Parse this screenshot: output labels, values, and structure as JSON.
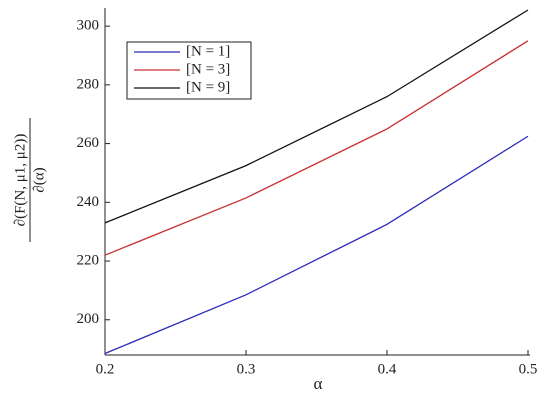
{
  "chart_data": {
    "type": "line",
    "x_label": "α",
    "y_label_numerator": "∂(F(N, μ1, μ2))",
    "y_label_denominator": "∂(α)",
    "x": [
      0.2,
      0.3,
      0.4,
      0.5
    ],
    "series": [
      {
        "name": "[N = 1]",
        "color": "#2b2bb8",
        "values": [
          188.5,
          208.5,
          232.5,
          262.5
        ]
      },
      {
        "name": "[N = 3]",
        "color": "#c83030",
        "values": [
          222,
          241.5,
          265,
          295
        ]
      },
      {
        "name": "[N = 9]",
        "color": "#111111",
        "values": [
          233,
          252.5,
          276,
          305.5
        ]
      }
    ],
    "xlim": [
      0.2,
      0.5
    ],
    "ylim": [
      188,
      305.5
    ],
    "xticks": [
      0.2,
      0.3,
      0.4,
      0.5
    ],
    "yticks": [
      200,
      220,
      240,
      260,
      280,
      300
    ],
    "legend": "upper left"
  }
}
